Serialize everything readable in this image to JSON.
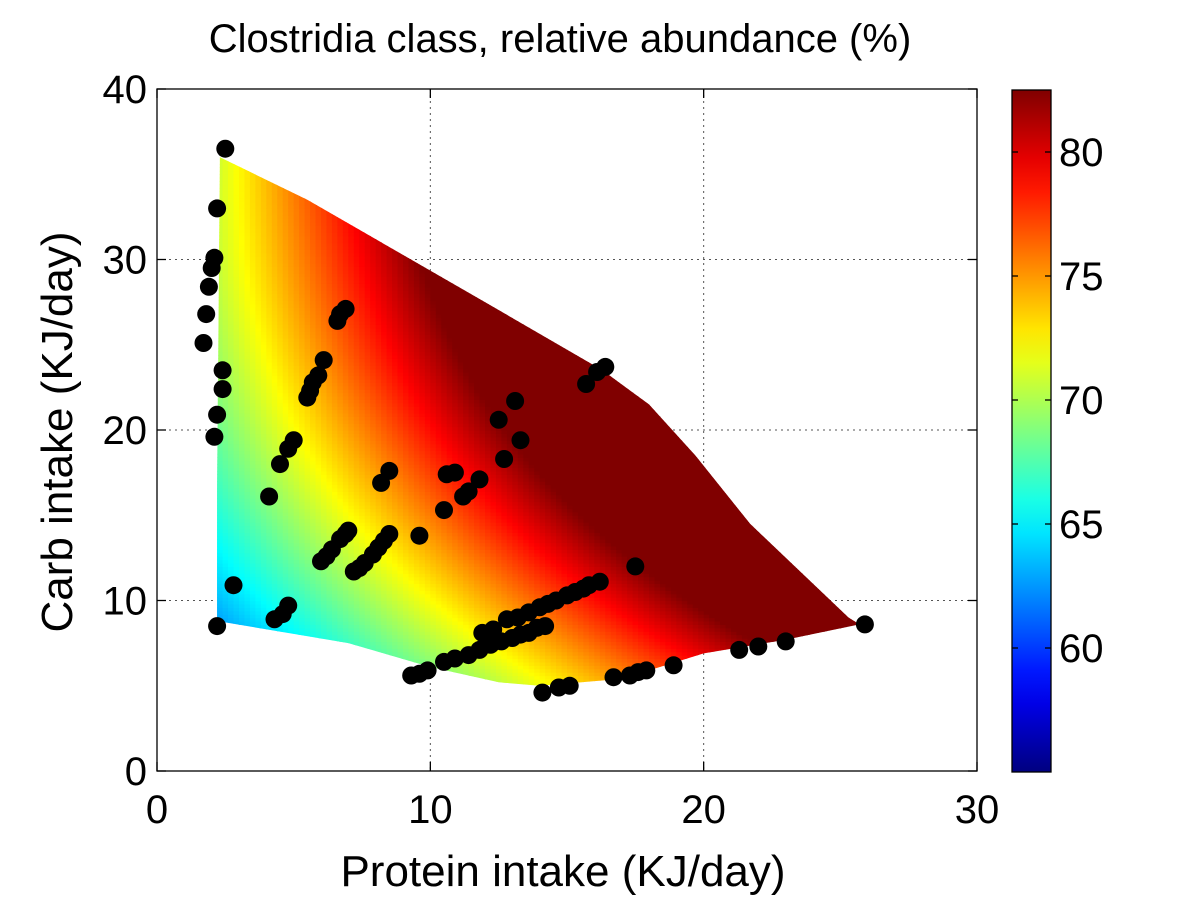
{
  "chart_data": {
    "type": "scatter",
    "title": "Clostridia class, relative abundance (%)",
    "xlabel": "Protein intake (KJ/day)",
    "ylabel": "Carb intake (KJ/day)",
    "xlim": [
      0,
      30
    ],
    "ylim": [
      0,
      40
    ],
    "xticks": [
      0,
      10,
      20,
      30
    ],
    "yticks": [
      0,
      10,
      20,
      30,
      40
    ],
    "grid": true,
    "surface": {
      "colormap": "jet",
      "crange": [
        55,
        82.5
      ],
      "colorbar_ticks": [
        60,
        65,
        70,
        75,
        80
      ],
      "boundary": [
        [
          2.3,
          36
        ],
        [
          2.2,
          16.5
        ],
        [
          2.2,
          8.8
        ],
        [
          7,
          7.5
        ],
        [
          10,
          6.1
        ],
        [
          12.5,
          5.2
        ],
        [
          14,
          5.0
        ],
        [
          17,
          5.4
        ],
        [
          20,
          6.9
        ],
        [
          23,
          7.7
        ],
        [
          25.7,
          8.6
        ],
        [
          25.3,
          9.0
        ],
        [
          21.7,
          14.5
        ],
        [
          19.7,
          18.5
        ],
        [
          18,
          21.5
        ],
        [
          16.3,
          23.5
        ],
        [
          12,
          27.5
        ],
        [
          5.5,
          33.5
        ],
        [
          2.3,
          36
        ]
      ]
    },
    "series": [
      {
        "points": [
          [
            2.5,
            36.5
          ],
          [
            2.2,
            33
          ],
          [
            2.1,
            30.1
          ],
          [
            2.0,
            29.5
          ],
          [
            1.9,
            28.4
          ],
          [
            1.8,
            26.8
          ],
          [
            1.7,
            25.1
          ],
          [
            2.4,
            23.5
          ],
          [
            2.4,
            22.4
          ],
          [
            2.2,
            20.9
          ],
          [
            2.1,
            19.6
          ],
          [
            2.2,
            8.5
          ],
          [
            2.8,
            10.9
          ],
          [
            4.1,
            16.1
          ],
          [
            4.5,
            18.0
          ],
          [
            4.8,
            18.9
          ],
          [
            5.0,
            19.4
          ],
          [
            5.5,
            21.9
          ],
          [
            5.6,
            22.3
          ],
          [
            5.7,
            22.8
          ],
          [
            5.9,
            23.2
          ],
          [
            6.1,
            24.1
          ],
          [
            6.6,
            26.4
          ],
          [
            6.7,
            26.8
          ],
          [
            6.9,
            27.1
          ],
          [
            4.3,
            8.9
          ],
          [
            4.6,
            9.2
          ],
          [
            4.8,
            9.7
          ],
          [
            6.0,
            12.3
          ],
          [
            6.2,
            12.6
          ],
          [
            6.4,
            13.0
          ],
          [
            6.7,
            13.6
          ],
          [
            6.9,
            13.9
          ],
          [
            7.0,
            14.1
          ],
          [
            7.2,
            11.7
          ],
          [
            7.4,
            11.9
          ],
          [
            7.6,
            12.2
          ],
          [
            7.9,
            12.7
          ],
          [
            8.1,
            13.1
          ],
          [
            8.3,
            13.5
          ],
          [
            8.5,
            13.9
          ],
          [
            8.2,
            16.9
          ],
          [
            8.5,
            17.6
          ],
          [
            9.6,
            13.8
          ],
          [
            10.5,
            15.3
          ],
          [
            10.6,
            17.4
          ],
          [
            10.9,
            17.5
          ],
          [
            11.2,
            16.1
          ],
          [
            11.4,
            16.4
          ],
          [
            11.8,
            17.1
          ],
          [
            12.5,
            20.6
          ],
          [
            12.7,
            18.3
          ],
          [
            13.1,
            21.7
          ],
          [
            13.3,
            19.4
          ],
          [
            9.3,
            5.6
          ],
          [
            9.6,
            5.7
          ],
          [
            9.9,
            5.9
          ],
          [
            10.5,
            6.4
          ],
          [
            10.9,
            6.6
          ],
          [
            11.4,
            6.8
          ],
          [
            11.8,
            7.1
          ],
          [
            12.2,
            7.4
          ],
          [
            12.6,
            7.6
          ],
          [
            13.0,
            7.8
          ],
          [
            13.3,
            8.0
          ],
          [
            13.6,
            8.1
          ],
          [
            11.9,
            8.1
          ],
          [
            12.3,
            8.3
          ],
          [
            12.8,
            8.9
          ],
          [
            13.2,
            9.0
          ],
          [
            13.6,
            9.3
          ],
          [
            14.0,
            9.6
          ],
          [
            14.3,
            9.8
          ],
          [
            14.6,
            10.0
          ],
          [
            15.0,
            10.3
          ],
          [
            15.3,
            10.5
          ],
          [
            15.6,
            10.7
          ],
          [
            15.8,
            10.9
          ],
          [
            16.2,
            11.1
          ],
          [
            13.9,
            8.4
          ],
          [
            14.2,
            8.5
          ],
          [
            14.1,
            4.6
          ],
          [
            14.7,
            4.9
          ],
          [
            15.1,
            5.0
          ],
          [
            16.7,
            5.5
          ],
          [
            17.3,
            5.6
          ],
          [
            17.6,
            5.8
          ],
          [
            17.9,
            5.9
          ],
          [
            18.9,
            6.2
          ],
          [
            17.5,
            12.0
          ],
          [
            21.3,
            7.1
          ],
          [
            22.0,
            7.3
          ],
          [
            23.0,
            7.6
          ],
          [
            25.9,
            8.6
          ],
          [
            15.7,
            22.7
          ],
          [
            16.1,
            23.4
          ],
          [
            16.4,
            23.7
          ]
        ]
      }
    ]
  }
}
